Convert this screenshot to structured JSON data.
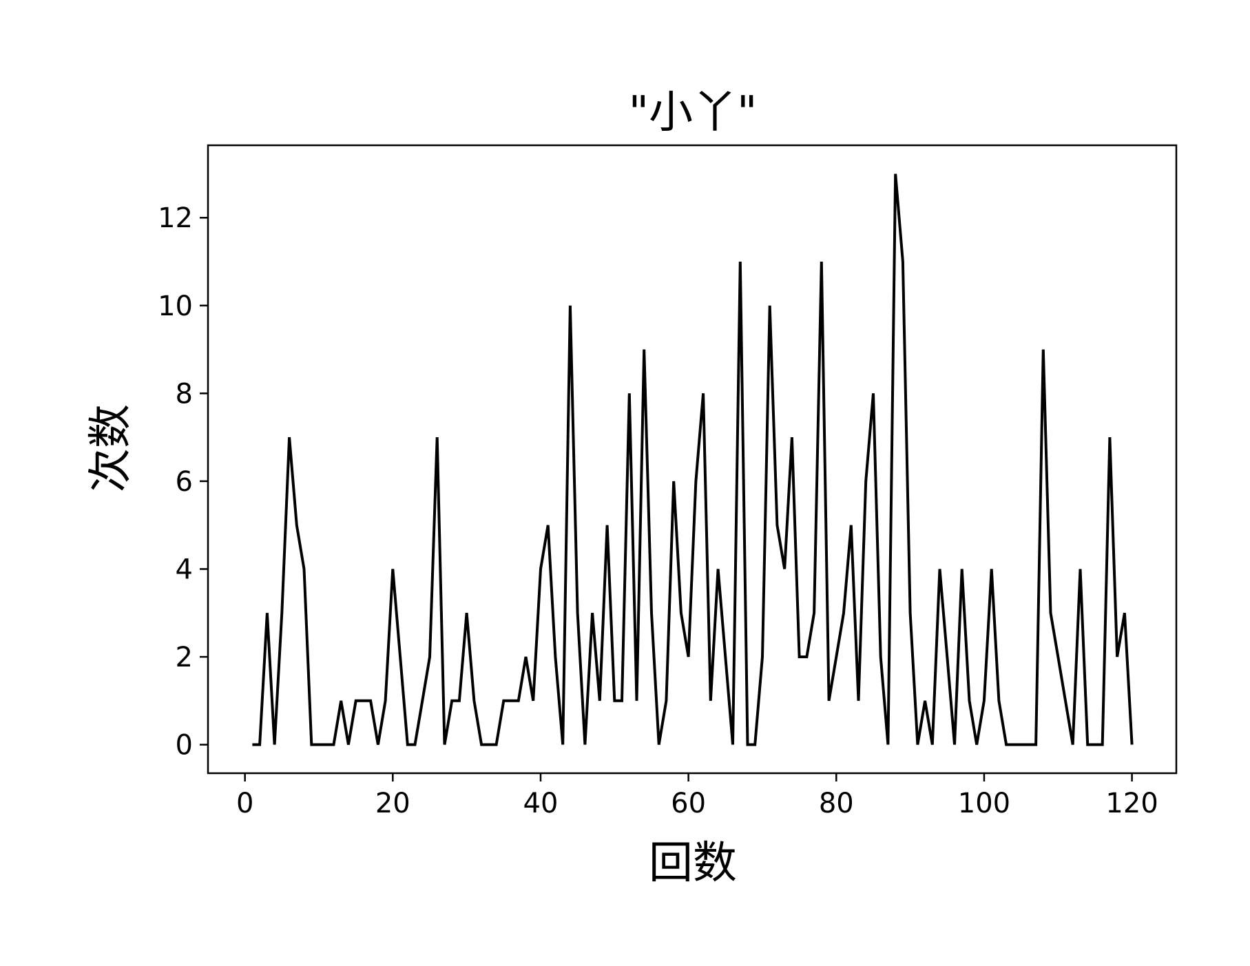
{
  "chart_data": {
    "type": "line",
    "title": "\"小丫\"",
    "xlabel": "回数",
    "ylabel": "次数",
    "xlim": [
      -5,
      126
    ],
    "ylim": [
      -0.65,
      13.65
    ],
    "xticks": [
      0,
      20,
      40,
      60,
      80,
      100,
      120
    ],
    "yticks": [
      0,
      2,
      4,
      6,
      8,
      10,
      12
    ],
    "grid": false,
    "line_color": "#000000",
    "x": [
      1,
      2,
      3,
      4,
      5,
      6,
      7,
      8,
      9,
      10,
      11,
      12,
      13,
      14,
      15,
      16,
      17,
      18,
      19,
      20,
      21,
      22,
      23,
      24,
      25,
      26,
      27,
      28,
      29,
      30,
      31,
      32,
      33,
      34,
      35,
      36,
      37,
      38,
      39,
      40,
      41,
      42,
      43,
      44,
      45,
      46,
      47,
      48,
      49,
      50,
      51,
      52,
      53,
      54,
      55,
      56,
      57,
      58,
      59,
      60,
      61,
      62,
      63,
      64,
      65,
      66,
      67,
      68,
      69,
      70,
      71,
      72,
      73,
      74,
      75,
      76,
      77,
      78,
      79,
      80,
      81,
      82,
      83,
      84,
      85,
      86,
      87,
      88,
      89,
      90,
      91,
      92,
      93,
      94,
      95,
      96,
      97,
      98,
      99,
      100,
      101,
      102,
      103,
      104,
      105,
      106,
      107,
      108,
      109,
      110,
      111,
      112,
      113,
      114,
      115,
      116,
      117,
      118,
      119,
      120
    ],
    "series": [
      {
        "values": [
          0,
          0,
          3,
          0,
          3,
          7,
          5,
          4,
          0,
          0,
          0,
          0,
          1,
          0,
          1,
          1,
          1,
          0,
          1,
          4,
          2,
          0,
          0,
          1,
          2,
          7,
          0,
          1,
          1,
          3,
          1,
          0,
          0,
          0,
          1,
          1,
          1,
          2,
          1,
          4,
          5,
          2,
          0,
          10,
          3,
          0,
          3,
          1,
          5,
          1,
          1,
          8,
          1,
          9,
          3,
          0,
          1,
          6,
          3,
          2,
          6,
          8,
          1,
          4,
          2,
          0,
          11,
          0,
          0,
          2,
          10,
          5,
          4,
          7,
          2,
          2,
          3,
          11,
          1,
          2,
          3,
          5,
          1,
          6,
          8,
          2,
          0,
          13,
          11,
          3,
          0,
          1,
          0,
          4,
          2,
          0,
          4,
          1,
          0,
          1,
          4,
          1,
          0,
          0,
          0,
          0,
          0,
          9,
          3,
          2,
          1,
          0,
          4,
          0,
          0,
          0,
          7,
          2,
          3,
          0
        ]
      }
    ]
  }
}
